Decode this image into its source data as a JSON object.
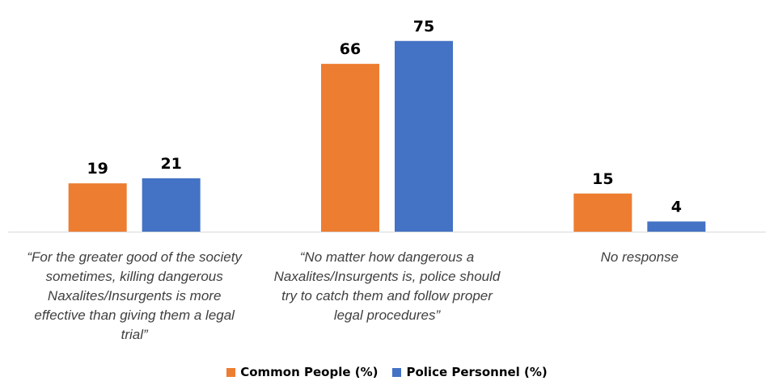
{
  "chart_data": {
    "type": "bar",
    "categories": [
      "“For the greater good of the society sometimes, killing dangerous Naxalites/Insurgents is more effective than giving them a legal trial”",
      "“No matter how dangerous a Naxalites/Insurgents is, police should try to catch them and follow proper legal procedures”",
      "No response"
    ],
    "category_lines": [
      [
        "“For the greater good of the society",
        "sometimes, killing dangerous",
        "Naxalites/Insurgents is more",
        "effective than giving them a legal",
        "trial”"
      ],
      [
        "“No matter how dangerous a",
        "Naxalites/Insurgents is, police should",
        "try to catch them and follow proper",
        "legal procedures”"
      ],
      [
        "No response"
      ]
    ],
    "series": [
      {
        "name": "Common People (%)",
        "values": [
          19,
          66,
          15
        ],
        "color": "#ED7D31"
      },
      {
        "name": "Police Personnel (%)",
        "values": [
          21,
          75,
          4
        ],
        "color": "#4472C4"
      }
    ],
    "ylim": [
      0,
      80
    ],
    "grid": false,
    "legend_position": "bottom",
    "data_labels": true
  }
}
